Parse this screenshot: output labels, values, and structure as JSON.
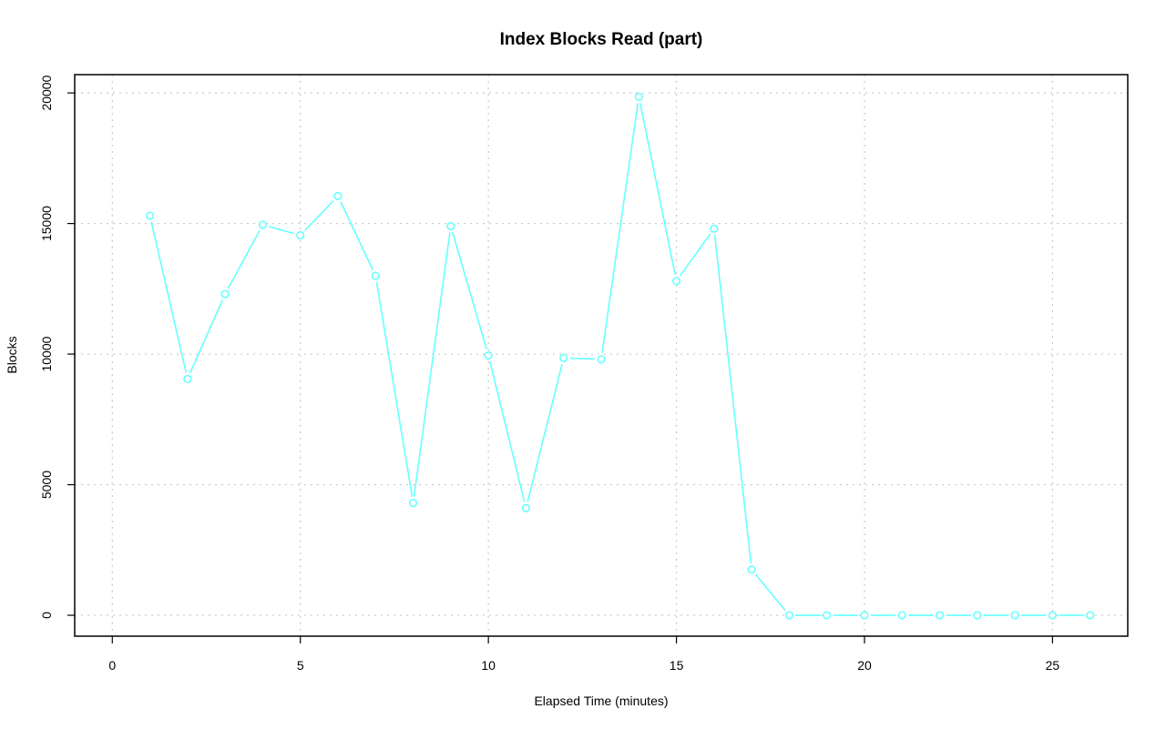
{
  "chart_data": {
    "type": "line",
    "title": "Index Blocks Read (part)",
    "xlabel": "Elapsed Time (minutes)",
    "ylabel": "Blocks",
    "xlim": [
      -1,
      27
    ],
    "ylim": [
      -800,
      20700
    ],
    "xticks": [
      0,
      5,
      10,
      15,
      20,
      25
    ],
    "yticks": [
      0,
      5000,
      10000,
      15000,
      20000
    ],
    "grid": true,
    "color": "#66ffff",
    "series": [
      {
        "x": [
          1,
          2,
          3,
          4,
          5,
          6,
          7,
          8,
          9,
          10,
          11,
          12,
          13,
          14,
          15,
          16,
          17,
          18,
          19,
          20,
          21,
          22,
          23,
          24,
          25,
          26
        ],
        "values": [
          15300,
          9050,
          12300,
          14950,
          14550,
          16050,
          13000,
          4300,
          14900,
          9950,
          4100,
          9850,
          9800,
          19850,
          12800,
          14800,
          1750,
          0,
          0,
          0,
          0,
          0,
          0,
          0,
          0,
          0
        ]
      }
    ]
  }
}
